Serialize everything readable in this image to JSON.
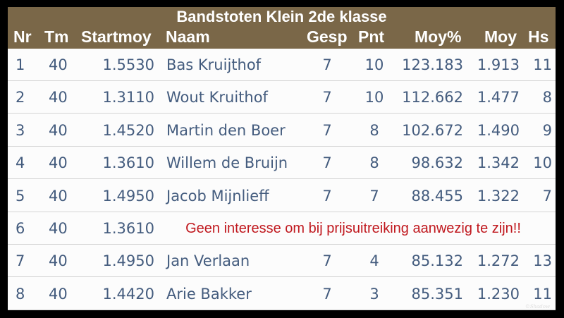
{
  "title": "Bandstoten Klein 2de klasse",
  "columns": {
    "nr": "Nr",
    "tm": "Tm",
    "startmoy": "Startmoy",
    "naam": "Naam",
    "gesp": "Gesp",
    "pnt": "Pnt",
    "moyp": "Moy%",
    "moy": "Moy",
    "hs": "Hs"
  },
  "rows": [
    {
      "nr": "1",
      "tm": "40",
      "startmoy": "1.5530",
      "naam": "Bas Kruijthof",
      "gesp": "7",
      "pnt": "10",
      "moyp": "123.183",
      "moy": "1.913",
      "hs": "11"
    },
    {
      "nr": "2",
      "tm": "40",
      "startmoy": "1.3110",
      "naam": "Wout Kruithof",
      "gesp": "7",
      "pnt": "10",
      "moyp": "112.662",
      "moy": "1.477",
      "hs": "8"
    },
    {
      "nr": "3",
      "tm": "40",
      "startmoy": "1.4520",
      "naam": "Martin den Boer",
      "gesp": "7",
      "pnt": "8",
      "moyp": "102.672",
      "moy": "1.490",
      "hs": "9"
    },
    {
      "nr": "4",
      "tm": "40",
      "startmoy": "1.3610",
      "naam": "Willem de Bruijn",
      "gesp": "7",
      "pnt": "8",
      "moyp": "98.632",
      "moy": "1.342",
      "hs": "10"
    },
    {
      "nr": "5",
      "tm": "40",
      "startmoy": "1.4950",
      "naam": "Jacob Mijnlieff",
      "gesp": "7",
      "pnt": "7",
      "moyp": "88.455",
      "moy": "1.322",
      "hs": "7"
    },
    {
      "nr": "6",
      "tm": "40",
      "startmoy": "1.3610",
      "note": "Geen interesse om bij prijsuitreiking aanwezig te zijn!!"
    },
    {
      "nr": "7",
      "tm": "40",
      "startmoy": "1.4950",
      "naam": "Jan Verlaan",
      "gesp": "7",
      "pnt": "4",
      "moyp": "85.132",
      "moy": "1.272",
      "hs": "13"
    },
    {
      "nr": "8",
      "tm": "40",
      "startmoy": "1.4420",
      "naam": "Arie Bakker",
      "gesp": "7",
      "pnt": "3",
      "moyp": "85.351",
      "moy": "1.230",
      "hs": "11"
    }
  ],
  "watermark": "©Shadow",
  "colors": {
    "header_bg": "#7a6748",
    "text": "#445c7e",
    "note": "#c0181e"
  }
}
